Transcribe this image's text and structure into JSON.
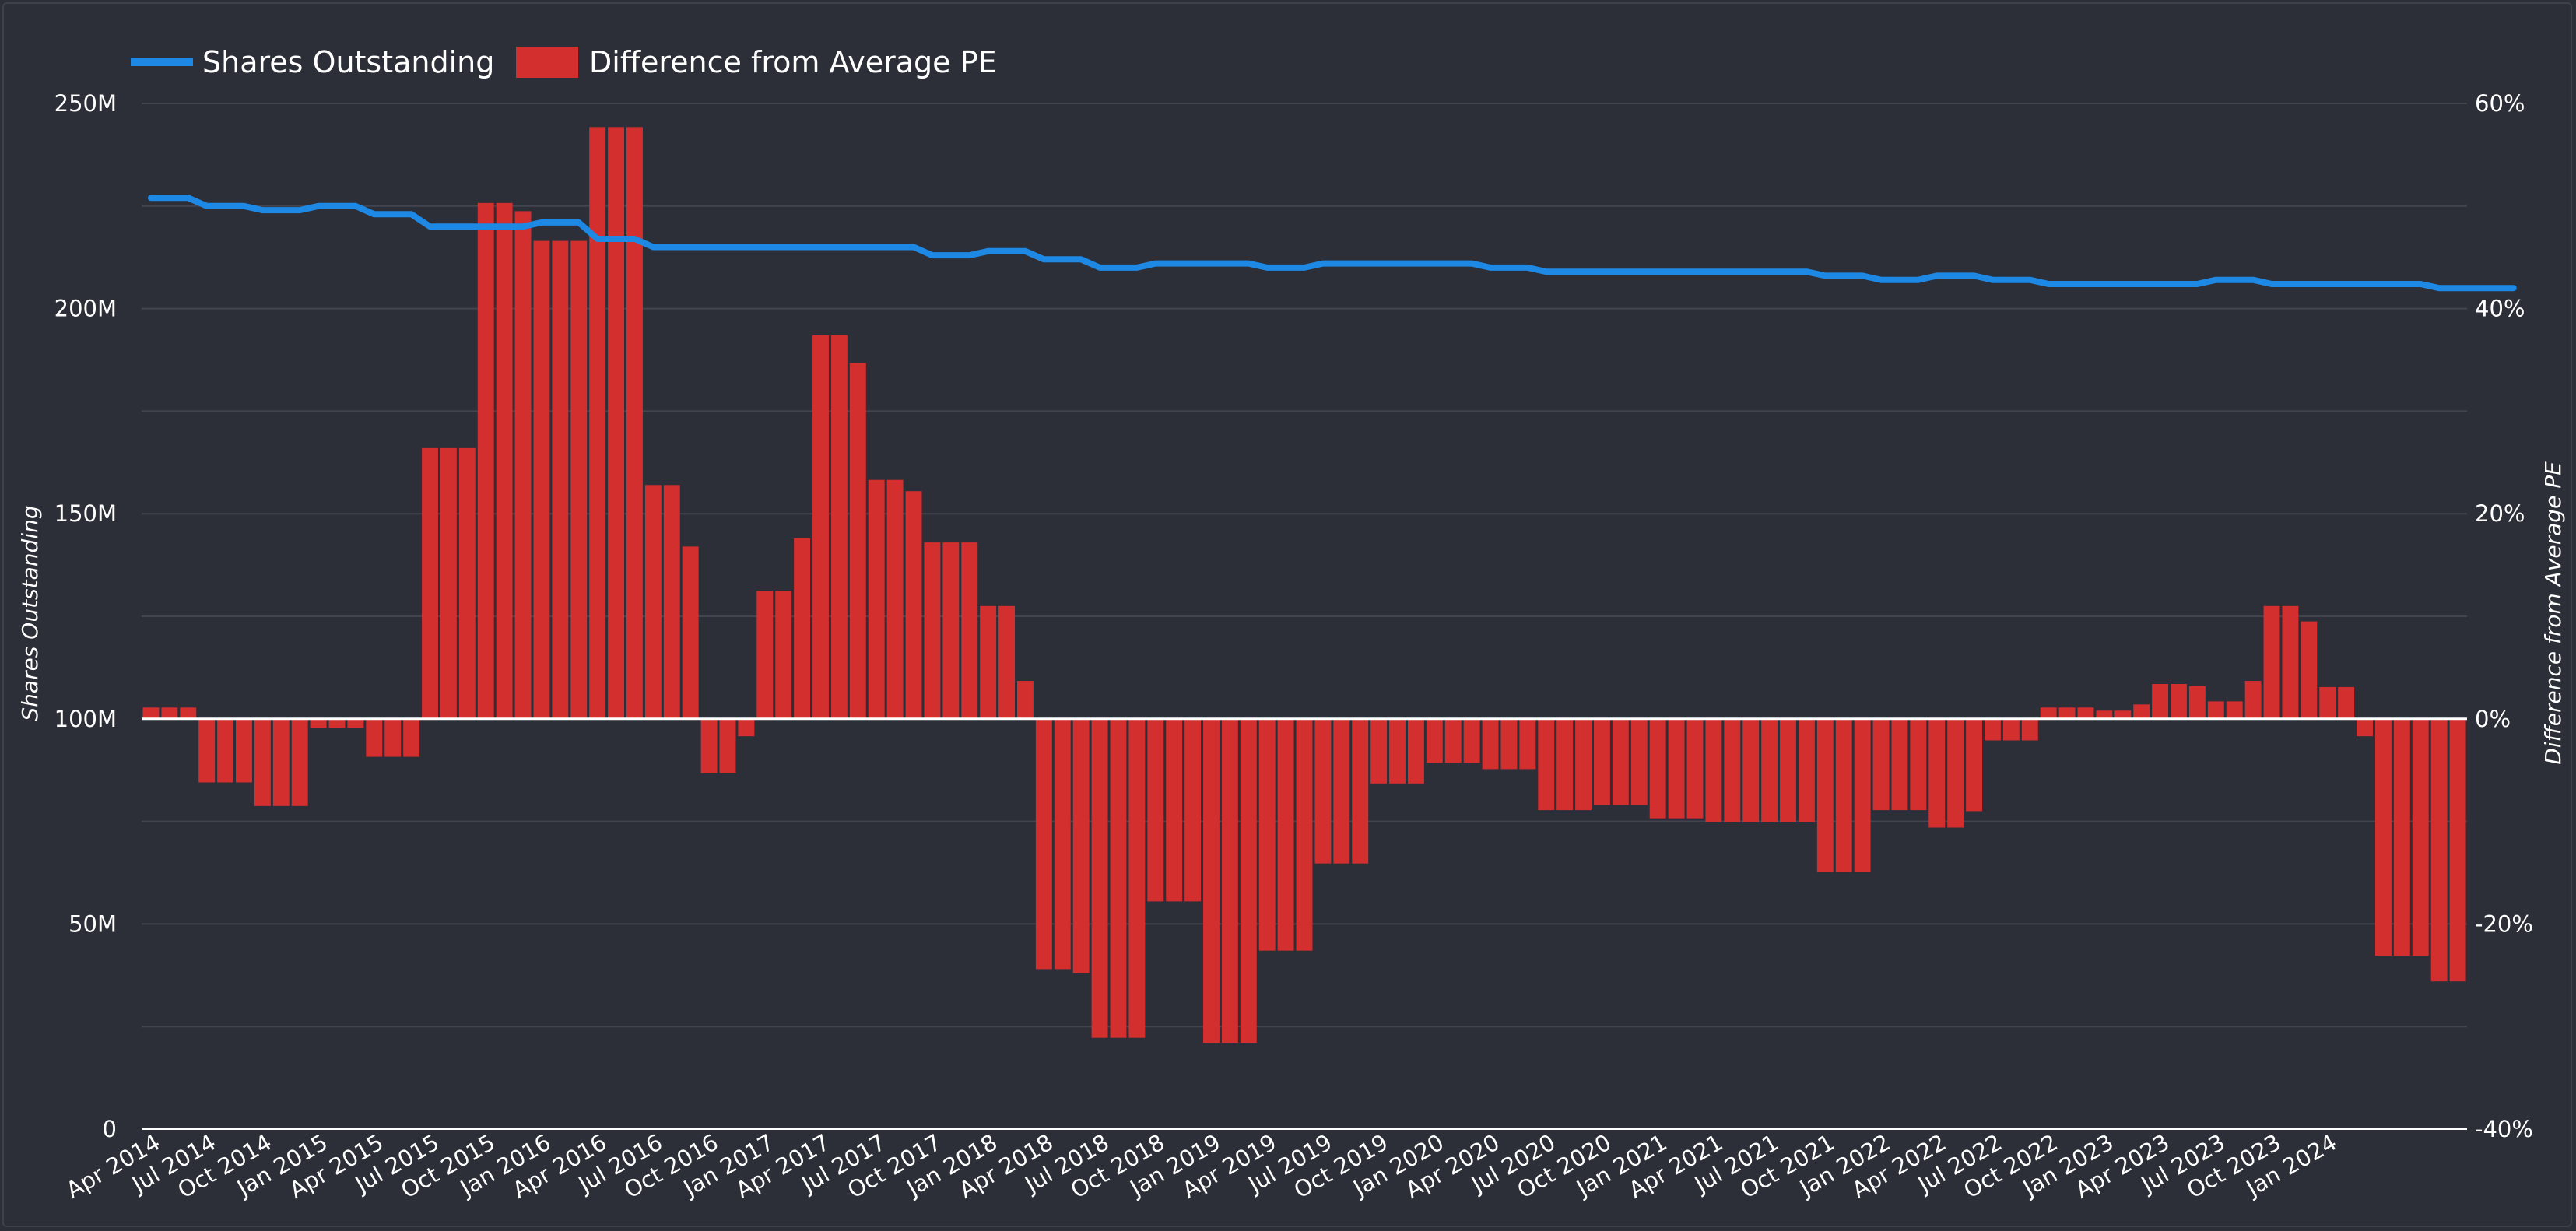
{
  "chart_data": {
    "type": "bar+line",
    "legend": {
      "placement": "top-left",
      "items": [
        {
          "name": "Shares Outstanding",
          "kind": "line",
          "color": "#1e88e5"
        },
        {
          "name": "Difference from Average PE",
          "kind": "bar",
          "color": "#d32f2f"
        }
      ]
    },
    "y_left": {
      "label": "Shares Outstanding",
      "ticks": [
        0,
        50,
        100,
        150,
        200,
        250
      ],
      "tick_labels": [
        "0",
        "50M",
        "100M",
        "150M",
        "200M",
        "250M"
      ],
      "range": [
        0,
        250
      ]
    },
    "y_right": {
      "label": "Difference from Average PE",
      "ticks": [
        -40,
        -20,
        0,
        20,
        40,
        60
      ],
      "tick_labels": [
        "-40%",
        "-20%",
        "0%",
        "20%",
        "40%",
        "60%"
      ],
      "range": [
        -40,
        60
      ]
    },
    "x_tick_labels": [
      "Apr 2014",
      "Jul 2014",
      "Oct 2014",
      "Jan 2015",
      "Apr 2015",
      "Jul 2015",
      "Oct 2015",
      "Jan 2016",
      "Apr 2016",
      "Jul 2016",
      "Oct 2016",
      "Jan 2017",
      "Apr 2017",
      "Jul 2017",
      "Oct 2017",
      "Jan 2018",
      "Apr 2018",
      "Jul 2018",
      "Oct 2018",
      "Jan 2019",
      "Apr 2019",
      "Jul 2019",
      "Oct 2019",
      "Jan 2020",
      "Apr 2020",
      "Jul 2020",
      "Oct 2020",
      "Jan 2021",
      "Apr 2021",
      "Jul 2021",
      "Oct 2021",
      "Jan 2022",
      "Apr 2022",
      "Jul 2022",
      "Oct 2022",
      "Jan 2023",
      "Apr 2023",
      "Jul 2023",
      "Oct 2023",
      "Jan 2024"
    ],
    "series": [
      {
        "name": "Difference from Average PE",
        "unit": "%",
        "axis": "right",
        "values": [
          1.1,
          1.1,
          1.1,
          -6.2,
          -6.2,
          -6.2,
          -8.5,
          -8.5,
          -8.5,
          -0.9,
          -0.9,
          -0.9,
          -3.7,
          -3.7,
          -3.7,
          26.4,
          26.4,
          26.4,
          50.3,
          50.3,
          49.5,
          46.6,
          46.6,
          46.6,
          57.7,
          57.7,
          57.7,
          22.8,
          22.8,
          16.8,
          -5.3,
          -5.3,
          -1.7,
          12.5,
          12.5,
          17.6,
          37.4,
          37.4,
          34.7,
          23.3,
          23.3,
          22.2,
          17.2,
          17.2,
          17.2,
          11,
          11,
          3.7,
          -24.4,
          -24.4,
          -24.8,
          -31.1,
          -31.1,
          -31.1,
          -17.8,
          -17.8,
          -17.8,
          -31.6,
          -31.6,
          -31.6,
          -22.6,
          -22.6,
          -22.6,
          -14.1,
          -14.1,
          -14.1,
          -6.3,
          -6.3,
          -6.3,
          -4.3,
          -4.3,
          -4.3,
          -4.9,
          -4.9,
          -4.9,
          -8.9,
          -8.9,
          -8.9,
          -8.4,
          -8.4,
          -8.4,
          -9.7,
          -9.7,
          -9.7,
          -10.1,
          -10.1,
          -10.1,
          -10.1,
          -10.1,
          -10.1,
          -14.9,
          -14.9,
          -14.9,
          -8.9,
          -8.9,
          -8.9,
          -10.6,
          -10.6,
          -9,
          -2.1,
          -2.1,
          -2.1,
          1.1,
          1.1,
          1.1,
          0.8,
          0.8,
          1.4,
          3.4,
          3.4,
          3.2,
          1.7,
          1.7,
          3.7,
          11,
          11,
          9.5,
          3.1,
          3.1,
          -1.7,
          -23.1,
          -23.1,
          -23.1,
          -25.6,
          -25.6
        ]
      },
      {
        "name": "Shares Outstanding",
        "unit": "M",
        "axis": "left",
        "values": [
          227,
          227,
          227,
          225,
          225,
          225,
          224,
          224,
          224,
          225,
          225,
          225,
          223,
          223,
          223,
          220,
          220,
          220,
          220,
          220,
          220,
          221,
          221,
          221,
          217,
          217,
          217,
          215,
          215,
          215,
          215,
          215,
          215,
          215,
          215,
          215,
          215,
          215,
          215,
          215,
          215,
          215,
          213,
          213,
          213,
          214,
          214,
          214,
          212,
          212,
          212,
          210,
          210,
          210,
          211,
          211,
          211,
          211,
          211,
          211,
          210,
          210,
          210,
          211,
          211,
          211,
          211,
          211,
          211,
          211,
          211,
          211,
          210,
          210,
          210,
          209,
          209,
          209,
          209,
          209,
          209,
          209,
          209,
          209,
          209,
          209,
          209,
          209,
          209,
          209,
          208,
          208,
          208,
          207,
          207,
          207,
          208,
          208,
          208,
          207,
          207,
          207,
          206,
          206,
          206,
          206,
          206,
          206,
          206,
          206,
          206,
          207,
          207,
          207,
          206,
          206,
          206,
          206,
          206,
          206,
          206,
          206,
          206,
          205,
          205,
          205,
          205,
          205
        ]
      }
    ]
  }
}
